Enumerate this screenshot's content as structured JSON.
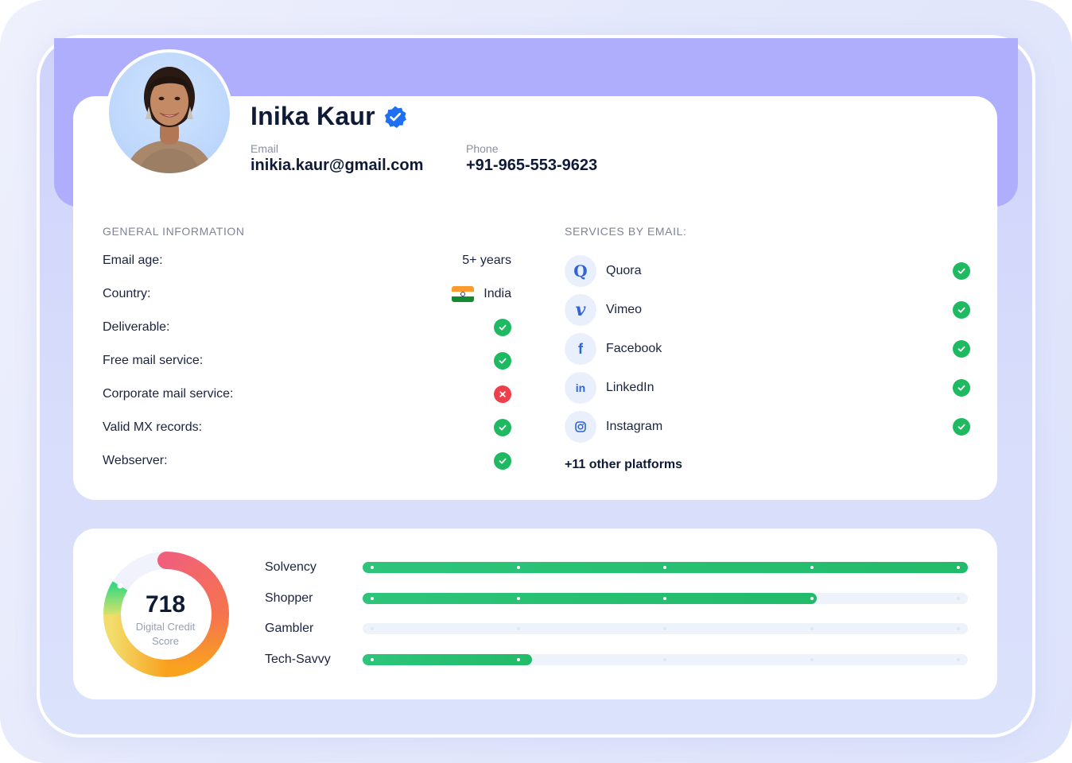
{
  "profile": {
    "name": "Inika Kaur",
    "email_label": "Email",
    "email": "inikia.kaur@gmail.com",
    "phone_label": "Phone",
    "phone": "+91-965-553-9623",
    "avatar_icon": "person-photo"
  },
  "general": {
    "title": "GENERAL INFORMATION",
    "rows": [
      {
        "label": "Email age:",
        "value": "5+ years"
      },
      {
        "label": "Country:",
        "value": "India",
        "icon": "india-flag-icon"
      },
      {
        "label": "Deliverable:",
        "status": "ok"
      },
      {
        "label": "Free mail service:",
        "status": "ok"
      },
      {
        "label": "Corporate mail service:",
        "status": "bad"
      },
      {
        "label": "Valid MX records:",
        "status": "ok"
      },
      {
        "label": "Webserver:",
        "status": "ok"
      }
    ]
  },
  "services": {
    "title": "SERVICES BY EMAIL:",
    "items": [
      {
        "name": "Quora",
        "icon": "quora-icon",
        "glyph": "Q",
        "status": "ok"
      },
      {
        "name": "Vimeo",
        "icon": "vimeo-icon",
        "glyph": "v",
        "status": "ok"
      },
      {
        "name": "Facebook",
        "icon": "facebook-icon",
        "glyph": "f",
        "status": "ok"
      },
      {
        "name": "LinkedIn",
        "icon": "linkedin-icon",
        "glyph": "in",
        "status": "ok"
      },
      {
        "name": "Instagram",
        "icon": "instagram-icon",
        "glyph": "◎",
        "status": "ok"
      }
    ],
    "more": "+11 other platforms"
  },
  "score": {
    "value": "718",
    "label": "Digital Credit Score"
  },
  "traits": [
    {
      "label": "Solvency",
      "fill": 1.0
    },
    {
      "label": "Shopper",
      "fill": 0.75
    },
    {
      "label": "Gambler",
      "fill": 0.0
    },
    {
      "label": "Tech-Savvy",
      "fill": 0.28
    }
  ],
  "colors": {
    "accent_purple": "#aeaefc",
    "ok_green": "#1fb961",
    "bad_red": "#ef3f4b",
    "bar_green": "#22bb6a"
  }
}
